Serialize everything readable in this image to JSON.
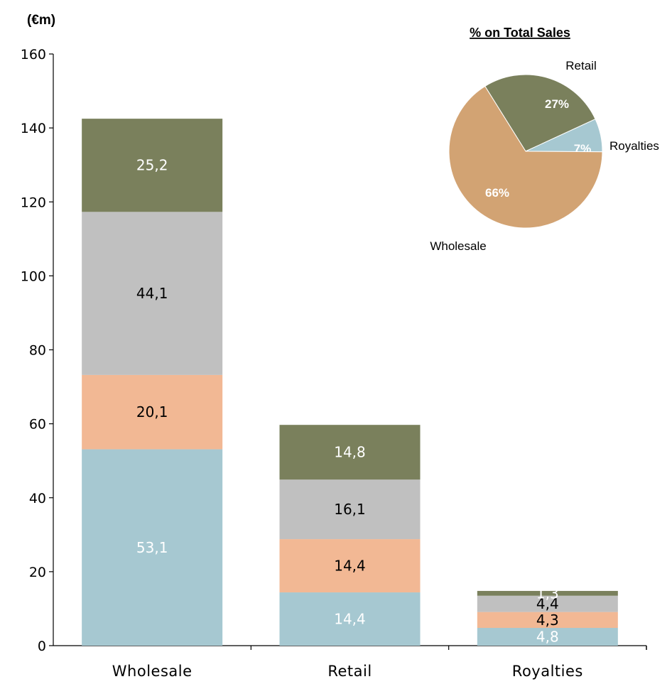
{
  "chart_data": [
    {
      "type": "bar",
      "stacked": true,
      "unit_label": "(€m)",
      "categories": [
        "Wholesale",
        "Retail",
        "Royalties"
      ],
      "ylim": [
        0,
        160
      ],
      "yticks": [
        0,
        20,
        40,
        60,
        80,
        100,
        120,
        140,
        160
      ],
      "grid": false,
      "series": [
        {
          "color": "#a6c8d1",
          "label_color": "#ffffff",
          "values": [
            53.1,
            14.4,
            4.8
          ],
          "labels": [
            "53,1",
            "14,4",
            "4,8"
          ]
        },
        {
          "color": "#f2b894",
          "label_color": "#000000",
          "values": [
            20.1,
            14.4,
            4.3
          ],
          "labels": [
            "20,1",
            "14,4",
            "4,3"
          ]
        },
        {
          "color": "#c0c0c0",
          "label_color": "#000000",
          "values": [
            44.1,
            16.1,
            4.4
          ],
          "labels": [
            "44,1",
            "16,1",
            "4,4"
          ]
        },
        {
          "color": "#7a805c",
          "label_color": "#ffffff",
          "values": [
            25.2,
            14.8,
            1.3
          ],
          "labels": [
            "25,2",
            "14,8",
            "1,3"
          ]
        }
      ]
    },
    {
      "type": "pie",
      "title": "% on Total Sales",
      "slices": [
        {
          "label": "Retail",
          "value": 27,
          "pct_label": "27%",
          "color": "#7a805c"
        },
        {
          "label": "Royalties",
          "value": 7,
          "pct_label": "7%",
          "color": "#a6c8d1"
        },
        {
          "label": "Wholesale",
          "value": 66,
          "pct_label": "66%",
          "color": "#d2a373"
        }
      ]
    }
  ]
}
